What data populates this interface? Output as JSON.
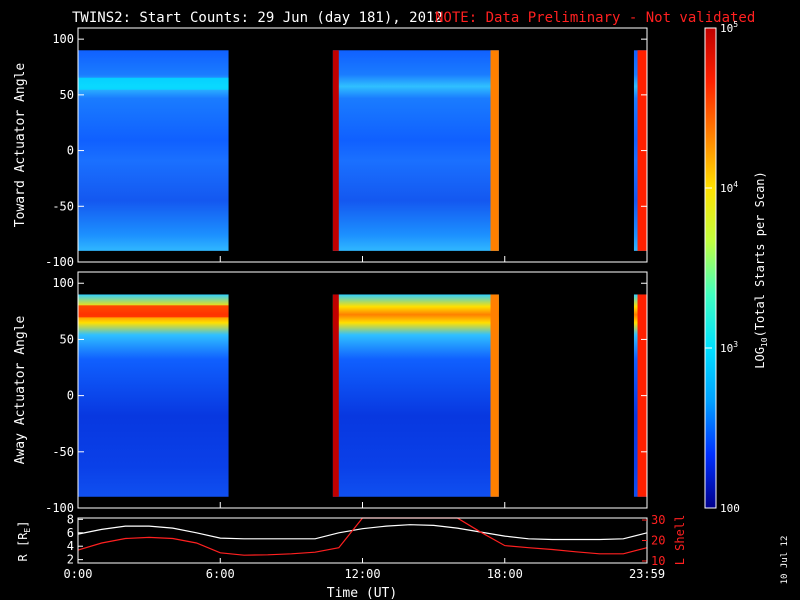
{
  "header": {
    "title": "TWINS2: Start Counts: 29 Jun (day 181), 2012",
    "note": "NOTE: Data Preliminary - Not validated",
    "note_color": "#ff2020"
  },
  "footer": {
    "date_stamp": "10 Jul 12"
  },
  "colorbar": {
    "label_base": "LOG",
    "label_sub": "10",
    "label_rest": "(Total Starts per Scan)",
    "scale": "log",
    "range": [
      100,
      100000
    ],
    "ticks": [
      "100",
      "10^3",
      "10^4",
      "10^5"
    ],
    "colors": [
      "#00008b",
      "#0030ff",
      "#00a0ff",
      "#00e0ff",
      "#40ffc0",
      "#c0ff40",
      "#ffe000",
      "#ff8000",
      "#ff2000",
      "#c00000"
    ]
  },
  "chart_data": [
    {
      "type": "heatmap",
      "title": "",
      "ylabel": "Toward Actuator Angle",
      "ylim": [
        -100,
        110
      ],
      "yticks": [
        "100",
        "50",
        "0",
        "-50",
        "-100"
      ],
      "angle_range": [
        -90,
        90
      ],
      "xlim": [
        0,
        24
      ],
      "grid": false,
      "data_intervals_hours": [
        [
          0.0,
          6.35
        ],
        [
          10.75,
          17.75
        ],
        [
          23.45,
          24.0
        ]
      ],
      "features": [
        {
          "description": "enhanced band near +60 deg",
          "angle": 60,
          "hours": [
            0.0,
            6.35
          ],
          "level": 1000
        },
        {
          "description": "bright edge",
          "hours": [
            10.75,
            11.0
          ],
          "level": 100000
        },
        {
          "description": "bright edge",
          "hours": [
            17.4,
            17.75
          ],
          "level": 30000
        },
        {
          "description": "bright edge",
          "hours": [
            23.6,
            24.0
          ],
          "level": 50000
        }
      ]
    },
    {
      "type": "heatmap",
      "title": "",
      "ylabel": "Away Actuator Angle",
      "ylim": [
        -100,
        110
      ],
      "yticks": [
        "100",
        "50",
        "0",
        "-50",
        "-100"
      ],
      "angle_range": [
        -90,
        90
      ],
      "xlim": [
        0,
        24
      ],
      "grid": false,
      "data_intervals_hours": [
        [
          0.0,
          6.35
        ],
        [
          10.75,
          17.75
        ],
        [
          23.45,
          24.0
        ]
      ],
      "features": [
        {
          "description": "enhanced band near +75 deg",
          "angle": 75,
          "hours": [
            0.0,
            6.35
          ],
          "level": 40000
        },
        {
          "description": "bright edge",
          "hours": [
            10.75,
            11.0
          ],
          "level": 100000
        },
        {
          "description": "bright edge",
          "hours": [
            17.4,
            17.75
          ],
          "level": 30000
        },
        {
          "description": "bright edge",
          "hours": [
            23.6,
            24.0
          ],
          "level": 50000
        }
      ]
    },
    {
      "type": "line",
      "title": "",
      "xlabel": "Time (UT)",
      "xticks": [
        "0:00",
        "6:00",
        "12:00",
        "18:00",
        "23:59"
      ],
      "xlim": [
        0,
        24
      ],
      "ylabel_left": "R [R",
      "ylabel_left_sub": "E",
      "ylabel_left_end": "]",
      "yticks_left": [
        "8",
        "6",
        "4",
        "2"
      ],
      "ylim_left": [
        1.5,
        8.2
      ],
      "ylabel_right": "L Shell",
      "yticks_right": [
        "30",
        "20",
        "10"
      ],
      "ylim_right": [
        9,
        31
      ],
      "series": [
        {
          "name": "R [RE]",
          "color": "#ffffff",
          "x": [
            0,
            1,
            2,
            3,
            4,
            5,
            6,
            7,
            8,
            9,
            10,
            11,
            12,
            13,
            14,
            15,
            16,
            17,
            18,
            19,
            20,
            21,
            22,
            23,
            24
          ],
          "values": [
            5.8,
            6.5,
            7.0,
            7.0,
            6.7,
            6.0,
            5.2,
            5.1,
            5.1,
            5.1,
            5.1,
            6.0,
            6.6,
            7.0,
            7.2,
            7.1,
            6.7,
            6.1,
            5.5,
            5.1,
            5.0,
            5.0,
            5.0,
            5.1,
            6.0
          ]
        },
        {
          "name": "L Shell",
          "color": "#ff2020",
          "x": [
            0,
            1,
            2,
            3,
            4,
            5,
            6,
            7,
            8,
            9,
            10,
            11,
            12,
            13,
            14,
            15,
            16,
            17,
            18,
            19,
            20,
            21,
            22,
            23,
            24
          ],
          "values": [
            15.3,
            18.8,
            21.0,
            21.5,
            21.0,
            18.8,
            14.0,
            12.8,
            13.0,
            13.5,
            14.3,
            16.5,
            31.0,
            31.0,
            31.0,
            31.0,
            31.0,
            24.0,
            17.5,
            16.5,
            15.6,
            14.5,
            13.5,
            13.5,
            16.5
          ]
        }
      ]
    }
  ]
}
